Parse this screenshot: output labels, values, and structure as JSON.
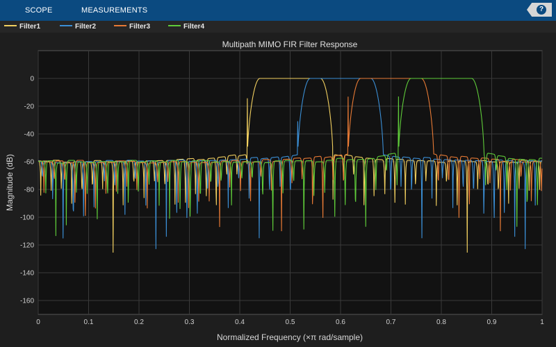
{
  "toolbar": {
    "tabs": [
      {
        "label": "SCOPE"
      },
      {
        "label": "MEASUREMENTS"
      }
    ],
    "help_label": "?"
  },
  "legend": {
    "items": [
      {
        "label": "Filter1",
        "color": "#f2d060"
      },
      {
        "label": "Filter2",
        "color": "#3b8fd6"
      },
      {
        "label": "Filter3",
        "color": "#e87a35"
      },
      {
        "label": "Filter4",
        "color": "#5fcc3a"
      }
    ]
  },
  "chart_data": {
    "type": "line",
    "title": "Multipath MIMO FIR Filter Response",
    "xlabel": "Normalized Frequency (×π rad/sample)",
    "ylabel": "Magnitude (dB)",
    "xlim": [
      0,
      1
    ],
    "ylim": [
      -170,
      20
    ],
    "xticks": [
      "0",
      "0.1",
      "0.2",
      "0.3",
      "0.4",
      "0.5",
      "0.6",
      "0.7",
      "0.8",
      "0.9",
      "1"
    ],
    "yticks": [
      "0",
      "-20",
      "-40",
      "-60",
      "-80",
      "-100",
      "-120",
      "-140",
      "-160"
    ],
    "grid": true,
    "series": [
      {
        "name": "Filter1",
        "color": "#f2d060",
        "passband": [
          0.44,
          0.56
        ],
        "edges": [
          0.415,
          0.585
        ],
        "sidelobe_db": -60
      },
      {
        "name": "Filter2",
        "color": "#3b8fd6",
        "passband": [
          0.54,
          0.66
        ],
        "edges": [
          0.515,
          0.685
        ],
        "sidelobe_db": -60
      },
      {
        "name": "Filter3",
        "color": "#e87a35",
        "passband": [
          0.64,
          0.76
        ],
        "edges": [
          0.615,
          0.785
        ],
        "sidelobe_db": -60
      },
      {
        "name": "Filter4",
        "color": "#5fcc3a",
        "passband": [
          0.74,
          0.86
        ],
        "edges": [
          0.715,
          0.885
        ],
        "sidelobe_db": -60
      }
    ]
  }
}
